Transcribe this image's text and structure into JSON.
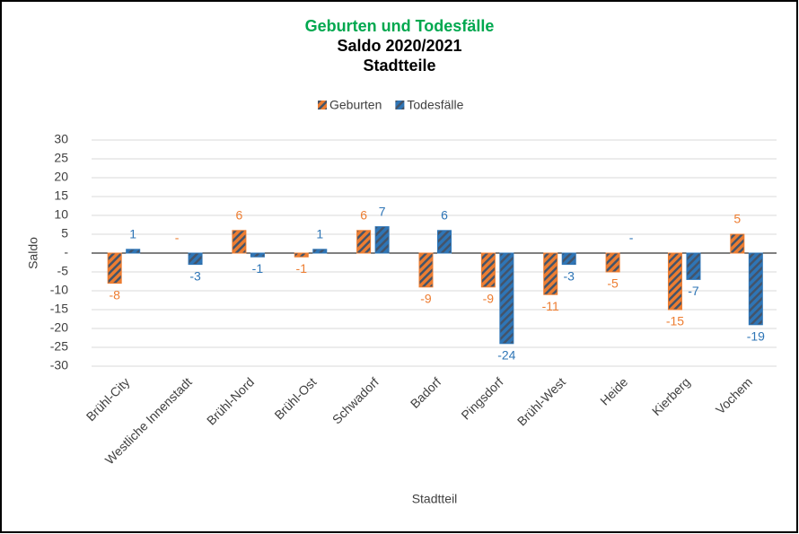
{
  "chart_data": {
    "type": "bar",
    "title": "Geburten und Todesfälle",
    "subtitle": "Saldo 2020/2021",
    "subtitle2": "Stadtteile",
    "x_label": "Stadtteil",
    "y_label": "Saldo",
    "categories": [
      "Brühl-City",
      "Westliche Innenstadt",
      "Brühl-Nord",
      "Brühl-Ost",
      "Schwadorf",
      "Badorf",
      "Pingsdorf",
      "Brühl-West",
      "Heide",
      "Kierberg",
      "Vochem"
    ],
    "series": [
      {
        "name": "Geburten",
        "color": "#ed7d31",
        "values": [
          -8,
          0,
          6,
          -1,
          6,
          -9,
          -9,
          -11,
          -5,
          -15,
          5
        ],
        "value_labels": [
          "-8",
          "-",
          "6",
          "-1",
          "6",
          "-9",
          "-9",
          "-11",
          "-5",
          "-15",
          "5"
        ]
      },
      {
        "name": "Todesfälle",
        "color": "#2e75b6",
        "values": [
          1,
          -3,
          -1,
          1,
          7,
          6,
          -24,
          -3,
          0,
          -7,
          -19
        ],
        "value_labels": [
          "1",
          "-3",
          "-1",
          "1",
          "7",
          "6",
          "-24",
          "-3",
          "-",
          "-7",
          "-19"
        ]
      }
    ],
    "ylim": [
      -30,
      30
    ],
    "yticks": [
      -30,
      -25,
      -20,
      -15,
      -10,
      -5,
      {
        "value": 0,
        "label": "-"
      },
      5,
      10,
      15,
      20,
      25,
      30
    ],
    "grid": true,
    "legend": "top"
  }
}
